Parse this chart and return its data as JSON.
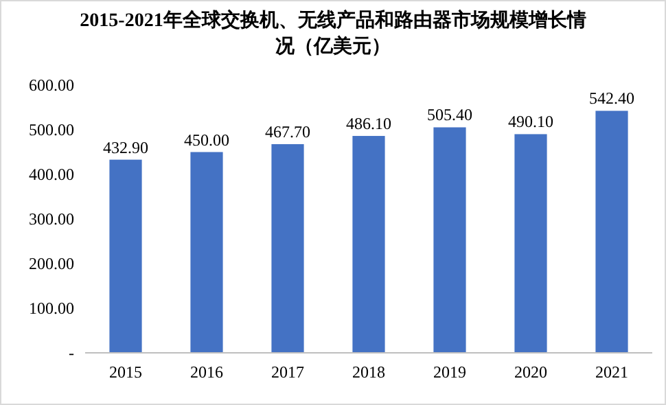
{
  "chart_data": {
    "type": "bar",
    "title": "2015-2021年全球交换机、无线产品和路由器市场规模增长情况（亿美元）",
    "categories": [
      "2015",
      "2016",
      "2017",
      "2018",
      "2019",
      "2020",
      "2021"
    ],
    "values": [
      432.9,
      450.0,
      467.7,
      486.1,
      505.4,
      490.1,
      542.4
    ],
    "value_labels": [
      "432.90",
      "450.00",
      "467.70",
      "486.10",
      "505.40",
      "490.10",
      "542.40"
    ],
    "color": "#4472c4",
    "ylim": [
      0,
      600
    ],
    "yticks": [
      {
        "value": 0,
        "label": "-"
      },
      {
        "value": 100,
        "label": "100.00"
      },
      {
        "value": 200,
        "label": "200.00"
      },
      {
        "value": 300,
        "label": "300.00"
      },
      {
        "value": 400,
        "label": "400.00"
      },
      {
        "value": 500,
        "label": "500.00"
      },
      {
        "value": 600,
        "label": "600.00"
      }
    ],
    "grid": false
  }
}
